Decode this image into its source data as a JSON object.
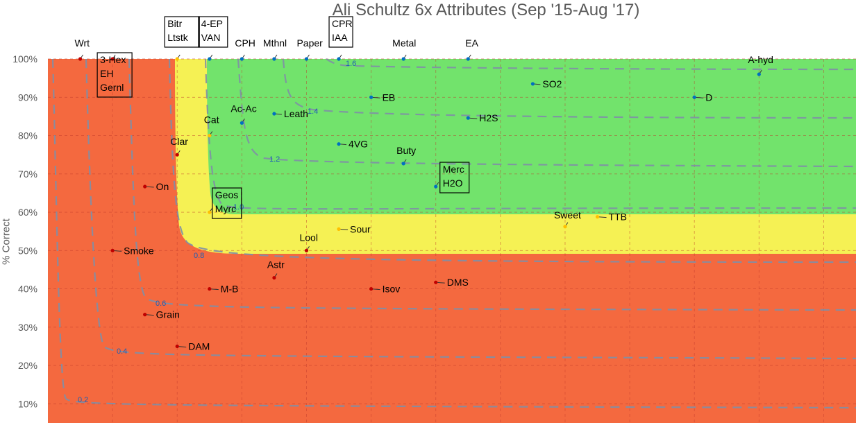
{
  "chart_data": {
    "type": "scatter",
    "title": "Ali Schultz 6x Attributes (Sep '15-Aug '17)",
    "xlabel": "",
    "ylabel": "% Correct",
    "ylim": [
      0.05,
      1.0
    ],
    "xlim": [
      0,
      25
    ],
    "y_ticks": [
      "10%",
      "20%",
      "30%",
      "40%",
      "50%",
      "60%",
      "70%",
      "80%",
      "90%",
      "100%"
    ],
    "grid": true,
    "legend": "none",
    "zones": [
      {
        "name": "red",
        "color": "#f4693f"
      },
      {
        "name": "yellow",
        "color": "#f5f154"
      },
      {
        "name": "green",
        "color": "#72e36c"
      }
    ],
    "contours": [
      "0.2",
      "0.4",
      "0.6",
      "0.8",
      "1.0",
      "1.2",
      "1.4",
      "1.6"
    ],
    "points": [
      {
        "label": "Wrt",
        "x": 1,
        "y": 1.0,
        "boxed": false,
        "color": "#c00000"
      },
      {
        "label": "3-Hex\nEH\nGernl",
        "x": 2,
        "y": 1.0,
        "boxed": true,
        "color": "#c00000"
      },
      {
        "label": "Bitr\nLtstk",
        "x": 4,
        "y": 1.0,
        "boxed": true,
        "color": "#ffc000"
      },
      {
        "label": "4-EP\nVAN",
        "x": 5,
        "y": 1.0,
        "boxed": true,
        "color": "#0070c0"
      },
      {
        "label": "CPH",
        "x": 6,
        "y": 1.0,
        "boxed": false,
        "color": "#0070c0"
      },
      {
        "label": "Mthnl",
        "x": 7,
        "y": 1.0,
        "boxed": false,
        "color": "#0070c0"
      },
      {
        "label": "Paper",
        "x": 8,
        "y": 1.0,
        "boxed": false,
        "color": "#0070c0"
      },
      {
        "label": "CPR\nIAA",
        "x": 9,
        "y": 1.0,
        "boxed": true,
        "color": "#0070c0"
      },
      {
        "label": "Metal",
        "x": 11,
        "y": 1.0,
        "boxed": false,
        "color": "#0070c0"
      },
      {
        "label": "EA",
        "x": 13,
        "y": 1.0,
        "boxed": false,
        "color": "#0070c0"
      },
      {
        "label": "A-hyd",
        "x": 22,
        "y": 0.96,
        "boxed": false,
        "color": "#0070c0"
      },
      {
        "label": "SO2",
        "x": 15,
        "y": 0.935,
        "boxed": false,
        "color": "#0070c0"
      },
      {
        "label": "EB",
        "x": 10,
        "y": 0.9,
        "boxed": false,
        "color": "#0070c0"
      },
      {
        "label": "D",
        "x": 20,
        "y": 0.9,
        "boxed": false,
        "color": "#0070c0"
      },
      {
        "label": "Ac-Ac",
        "x": 6,
        "y": 0.833,
        "boxed": false,
        "color": "#0070c0"
      },
      {
        "label": "Leath",
        "x": 7,
        "y": 0.857,
        "boxed": false,
        "color": "#0070c0"
      },
      {
        "label": "H2S",
        "x": 13,
        "y": 0.846,
        "boxed": false,
        "color": "#0070c0"
      },
      {
        "label": "Cat",
        "x": 5,
        "y": 0.8,
        "boxed": false,
        "color": "#ffc000"
      },
      {
        "label": "4VG",
        "x": 9,
        "y": 0.778,
        "boxed": false,
        "color": "#0070c0"
      },
      {
        "label": "Clar",
        "x": 4,
        "y": 0.75,
        "boxed": false,
        "color": "#c00000"
      },
      {
        "label": "Buty",
        "x": 11,
        "y": 0.727,
        "boxed": false,
        "color": "#0070c0"
      },
      {
        "label": "On",
        "x": 3,
        "y": 0.667,
        "boxed": false,
        "color": "#c00000"
      },
      {
        "label": "Merc\nH2O",
        "x": 12,
        "y": 0.667,
        "boxed": true,
        "color": "#0070c0"
      },
      {
        "label": "Geos\nMyrc",
        "x": 5,
        "y": 0.6,
        "boxed": true,
        "color": "#ffc000"
      },
      {
        "label": "Sweet",
        "x": 16,
        "y": 0.5625,
        "boxed": false,
        "color": "#ffc000"
      },
      {
        "label": "TTB",
        "x": 17,
        "y": 0.588,
        "boxed": false,
        "color": "#ffc000"
      },
      {
        "label": "Sour",
        "x": 9,
        "y": 0.556,
        "boxed": false,
        "color": "#ffc000"
      },
      {
        "label": "Lool",
        "x": 8,
        "y": 0.5,
        "boxed": false,
        "color": "#c00000"
      },
      {
        "label": "Smoke",
        "x": 2,
        "y": 0.5,
        "boxed": false,
        "color": "#c00000"
      },
      {
        "label": "Astr",
        "x": 7,
        "y": 0.429,
        "boxed": false,
        "color": "#c00000"
      },
      {
        "label": "M-B",
        "x": 5,
        "y": 0.4,
        "boxed": false,
        "color": "#c00000"
      },
      {
        "label": "Isov",
        "x": 10,
        "y": 0.4,
        "boxed": false,
        "color": "#c00000"
      },
      {
        "label": "DMS",
        "x": 12,
        "y": 0.417,
        "boxed": false,
        "color": "#c00000"
      },
      {
        "label": "Grain",
        "x": 3,
        "y": 0.333,
        "boxed": false,
        "color": "#c00000"
      },
      {
        "label": "DAM",
        "x": 4,
        "y": 0.25,
        "boxed": false,
        "color": "#c00000"
      }
    ]
  }
}
